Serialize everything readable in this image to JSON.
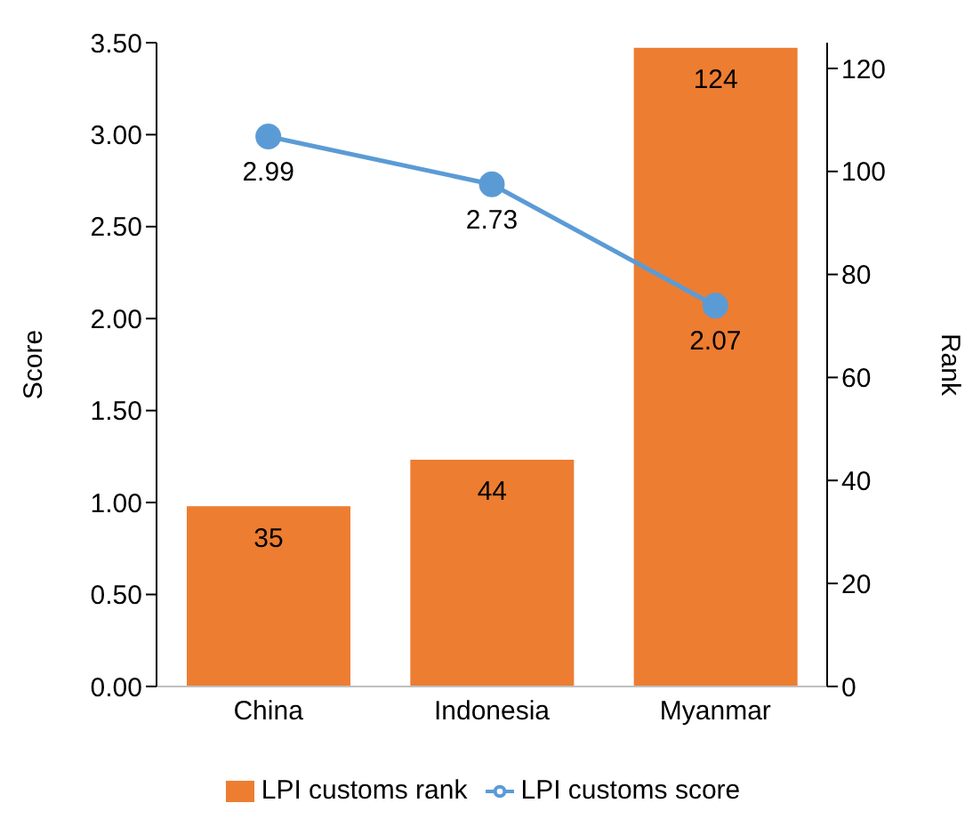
{
  "chart_data": {
    "type": "bar",
    "categories": [
      "China",
      "Indonesia",
      "Myanmar"
    ],
    "series": [
      {
        "name": "LPI customs rank",
        "axis": "y2",
        "color": "#ed7d31",
        "values": [
          35,
          44,
          124
        ]
      },
      {
        "name": "LPI customs score",
        "type": "line",
        "color": "#5b9bd5",
        "values": [
          2.99,
          2.73,
          2.07
        ]
      }
    ],
    "ylabel": "Score",
    "y2label": "Rank",
    "ylim": [
      0,
      3.5
    ],
    "yticks": [
      {
        "value": 0,
        "label": "0.00"
      },
      {
        "value": 0.5,
        "label": "0.50"
      },
      {
        "value": 1,
        "label": "1.00"
      },
      {
        "value": 1.5,
        "label": "1.50"
      },
      {
        "value": 2,
        "label": "2.00"
      },
      {
        "value": 2.5,
        "label": "2.50"
      },
      {
        "value": 3,
        "label": "3.00"
      },
      {
        "value": 3.5,
        "label": "3.50"
      }
    ],
    "y2lim": [
      0,
      125
    ],
    "y2ticks": [
      0,
      20,
      40,
      60,
      80,
      100,
      120
    ],
    "data_labels": true,
    "legend": "bottom",
    "marker": "circle",
    "grid": false
  }
}
